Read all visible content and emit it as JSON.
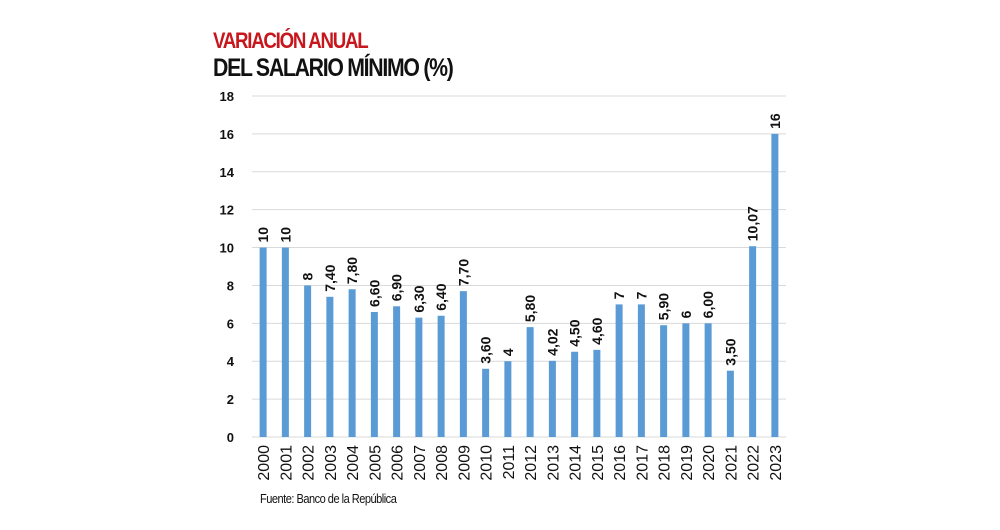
{
  "chart_data": {
    "type": "bar",
    "title": "VARIACIÓN ANUAL",
    "subtitle": "DEL SALARIO MÍNIMO (%)",
    "source": "Fuente: Banco de la República",
    "categories": [
      "2000",
      "2001",
      "2002",
      "2003",
      "2004",
      "2005",
      "2006",
      "2007",
      "2008",
      "2009",
      "2010",
      "2011",
      "2012",
      "2013",
      "2014",
      "2015",
      "2016",
      "2017",
      "2018",
      "2019",
      "2020",
      "2021",
      "2022",
      "2023"
    ],
    "values": [
      10,
      10,
      8,
      7.4,
      7.8,
      6.6,
      6.9,
      6.3,
      6.4,
      7.7,
      3.6,
      4,
      5.8,
      4.02,
      4.5,
      4.6,
      7,
      7,
      5.9,
      6,
      6.0,
      3.5,
      10.07,
      16
    ],
    "data_labels": [
      "10",
      "10",
      "8",
      "7,40",
      "7,80",
      "6,60",
      "6,90",
      "6,30",
      "6,40",
      "7,70",
      "3,60",
      "4",
      "5,80",
      "4,02",
      "4,50",
      "4,60",
      "7",
      "7",
      "5,90",
      "6",
      "6,00",
      "3,50",
      "10,07",
      "16"
    ],
    "yticks": [
      "0",
      "2",
      "4",
      "6",
      "8",
      "10",
      "12",
      "14",
      "16",
      "18"
    ],
    "ylim": [
      0,
      18
    ],
    "grid": true,
    "colors": {
      "bar": "#5b9bd5",
      "title": "#c8161d",
      "grid": "#d9d9d9"
    }
  }
}
